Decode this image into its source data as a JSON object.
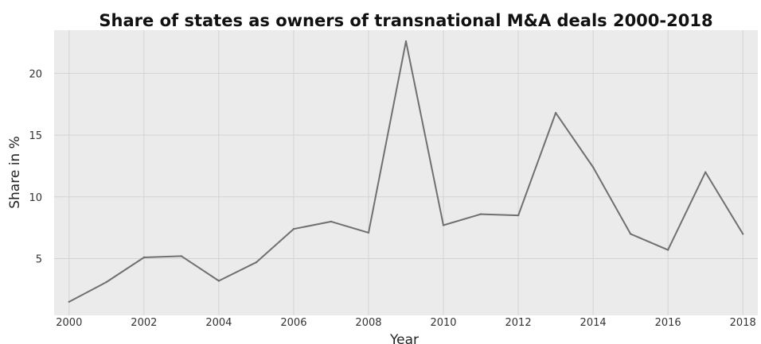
{
  "chart_data": {
    "type": "line",
    "title": "Share of states as owners of transnational M&A deals 2000-2018",
    "xlabel": "Year",
    "ylabel": "Share in %",
    "x": [
      2000,
      2001,
      2002,
      2003,
      2004,
      2005,
      2006,
      2007,
      2008,
      2009,
      2010,
      2011,
      2012,
      2013,
      2014,
      2015,
      2016,
      2017,
      2018
    ],
    "series": [
      {
        "values": [
          1.5,
          3.1,
          5.1,
          5.2,
          3.2,
          4.7,
          7.4,
          8.0,
          7.1,
          22.6,
          7.7,
          8.6,
          8.5,
          16.8,
          12.4,
          7.0,
          5.7,
          12.0,
          7.0
        ]
      }
    ],
    "xticks": [
      2000,
      2002,
      2004,
      2006,
      2008,
      2010,
      2012,
      2014,
      2016,
      2018
    ],
    "yticks": [
      5,
      10,
      15,
      20
    ],
    "xlim": [
      1999.6,
      2018.4
    ],
    "ylim": [
      0.4,
      23.5
    ],
    "grid": true,
    "legend": "none",
    "colors": {
      "line": "#707070",
      "plot_background": "#ebebeb",
      "grid": "#d3d3d3",
      "figure_background": "#ffffff"
    }
  }
}
